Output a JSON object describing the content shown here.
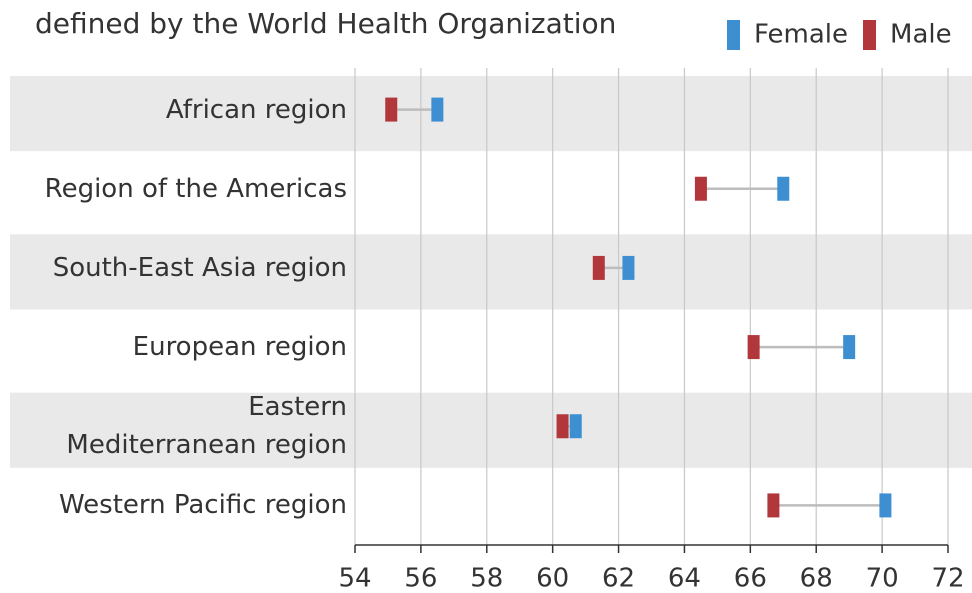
{
  "chart_data": {
    "type": "dumbbell",
    "title": "defined by the World Health Organization",
    "categories": [
      "African region",
      "Region of the Americas",
      "South-East Asia region",
      "European region",
      "Eastern\nMediterranean region",
      "Western Pacific region"
    ],
    "series": [
      {
        "name": "Female",
        "color": "#3d8fd1",
        "values": [
          56.5,
          67.0,
          62.3,
          69.0,
          60.7,
          70.1
        ]
      },
      {
        "name": "Male",
        "color": "#b2373a",
        "values": [
          55.1,
          64.5,
          61.4,
          66.1,
          60.3,
          66.7
        ]
      }
    ],
    "xlim": [
      54,
      72
    ],
    "xticks": [
      54,
      56,
      58,
      60,
      62,
      64,
      66,
      68,
      70,
      72
    ],
    "grid": true
  }
}
